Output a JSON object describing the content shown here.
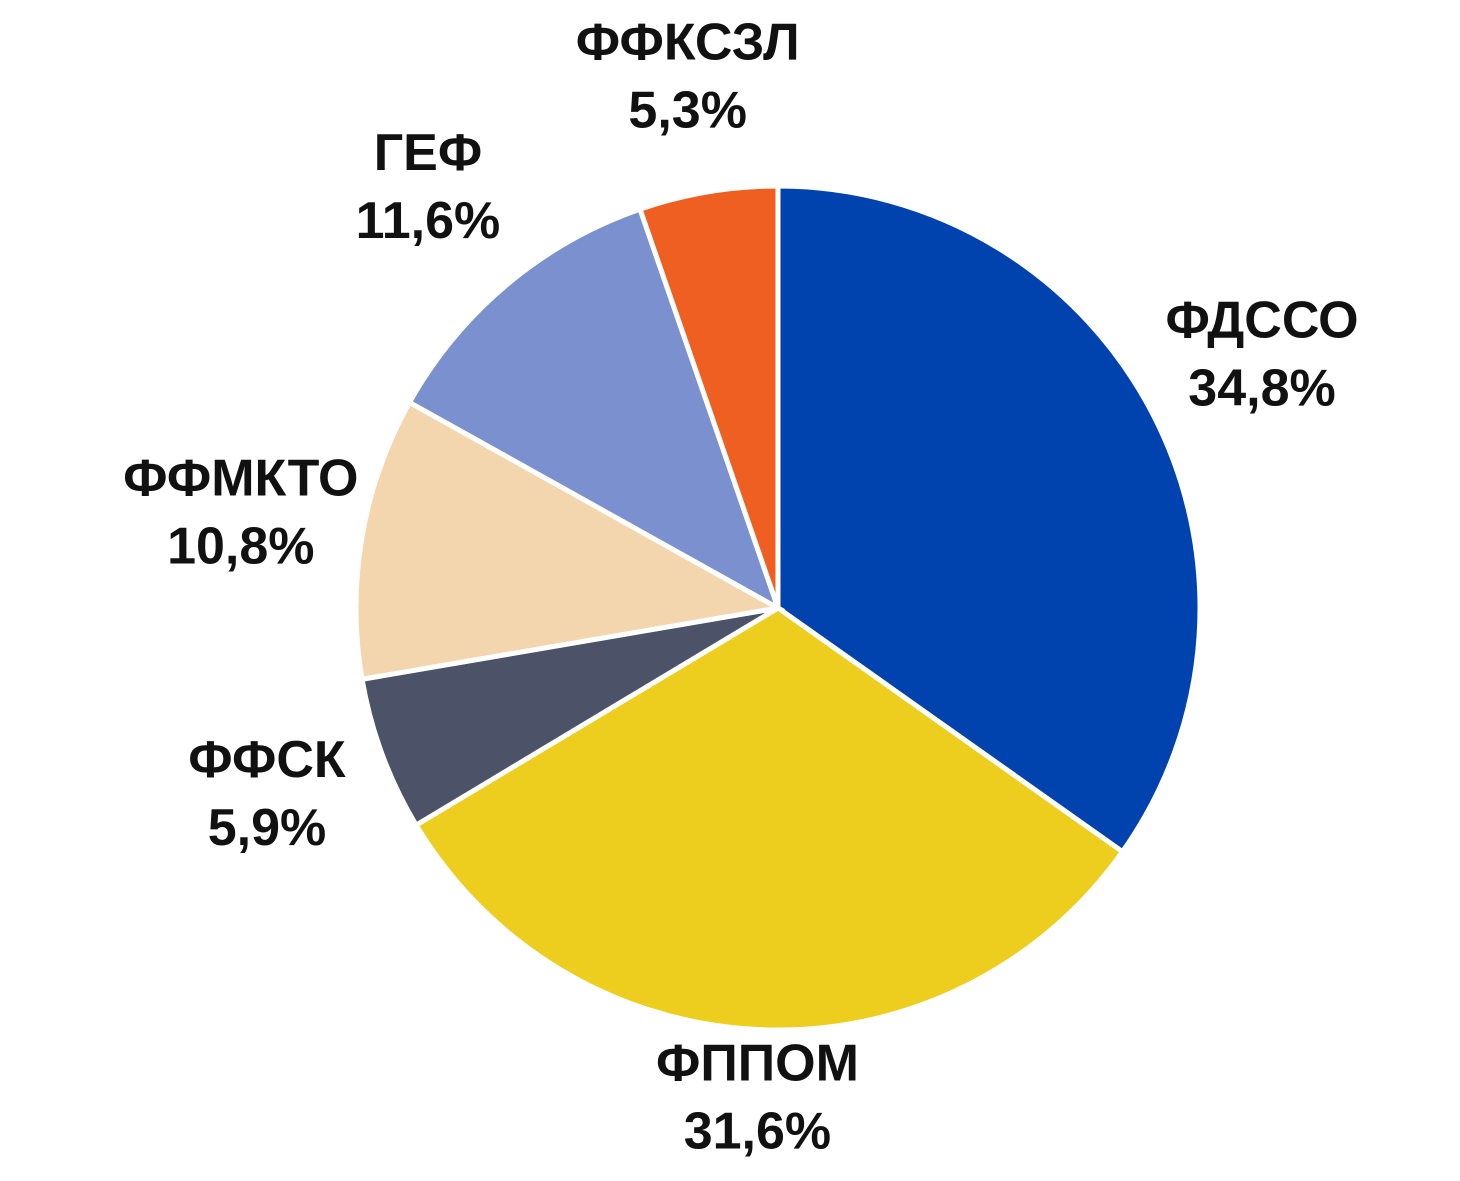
{
  "chart_data": {
    "type": "pie",
    "categories": [
      "ФДССО",
      "ФППОМ",
      "ФФСК",
      "ФФМКТО",
      "ГЕФ",
      "ФФКСЗЛ"
    ],
    "values": [
      34.8,
      31.6,
      5.9,
      10.8,
      11.6,
      5.3
    ],
    "value_labels": [
      "34,8%",
      "31,6%",
      "5,9%",
      "10,8%",
      "11,6%",
      "5,3%"
    ],
    "colors": [
      "#0043ae",
      "#edcd1d",
      "#4c5268",
      "#f3d6ae",
      "#7a90cf",
      "#ef5f22"
    ]
  }
}
